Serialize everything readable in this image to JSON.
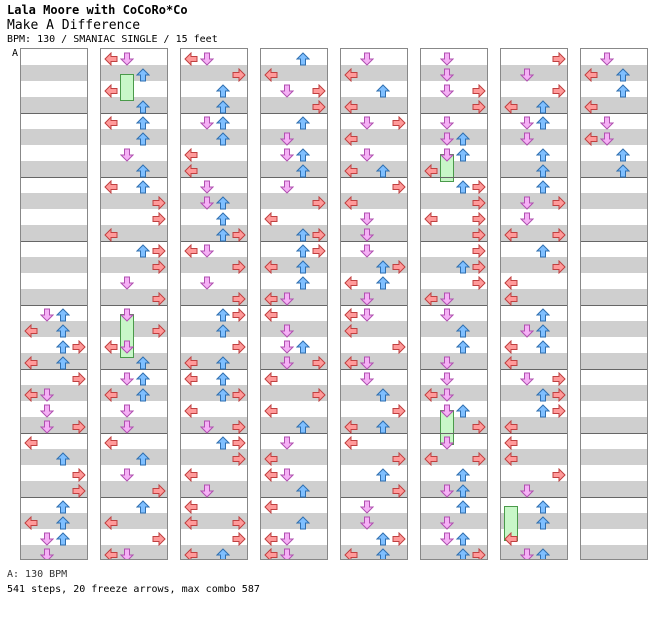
{
  "header": {
    "artist": "Lala Moore with CoCoRo*Co",
    "title": "Make A Difference",
    "info": "BPM: 130 / SMANIAC SINGLE / 15 feet"
  },
  "marker": "A",
  "footer": {
    "bpm_line": "A: 130 BPM",
    "stats_line": "541 steps, 20 freeze arrows, max combo 587"
  },
  "colors": {
    "left": "#ff9a9a",
    "down": "#f6b0f6",
    "up": "#7fbfff",
    "right": "#ff9a9a",
    "freeze": "#c8f7c8"
  },
  "chart": {
    "columns": 8,
    "measures_per_column": 8,
    "lanes": [
      "left",
      "down",
      "up",
      "right"
    ],
    "total_steps": 541,
    "freeze_arrows": 20,
    "max_combo": 587
  }
}
